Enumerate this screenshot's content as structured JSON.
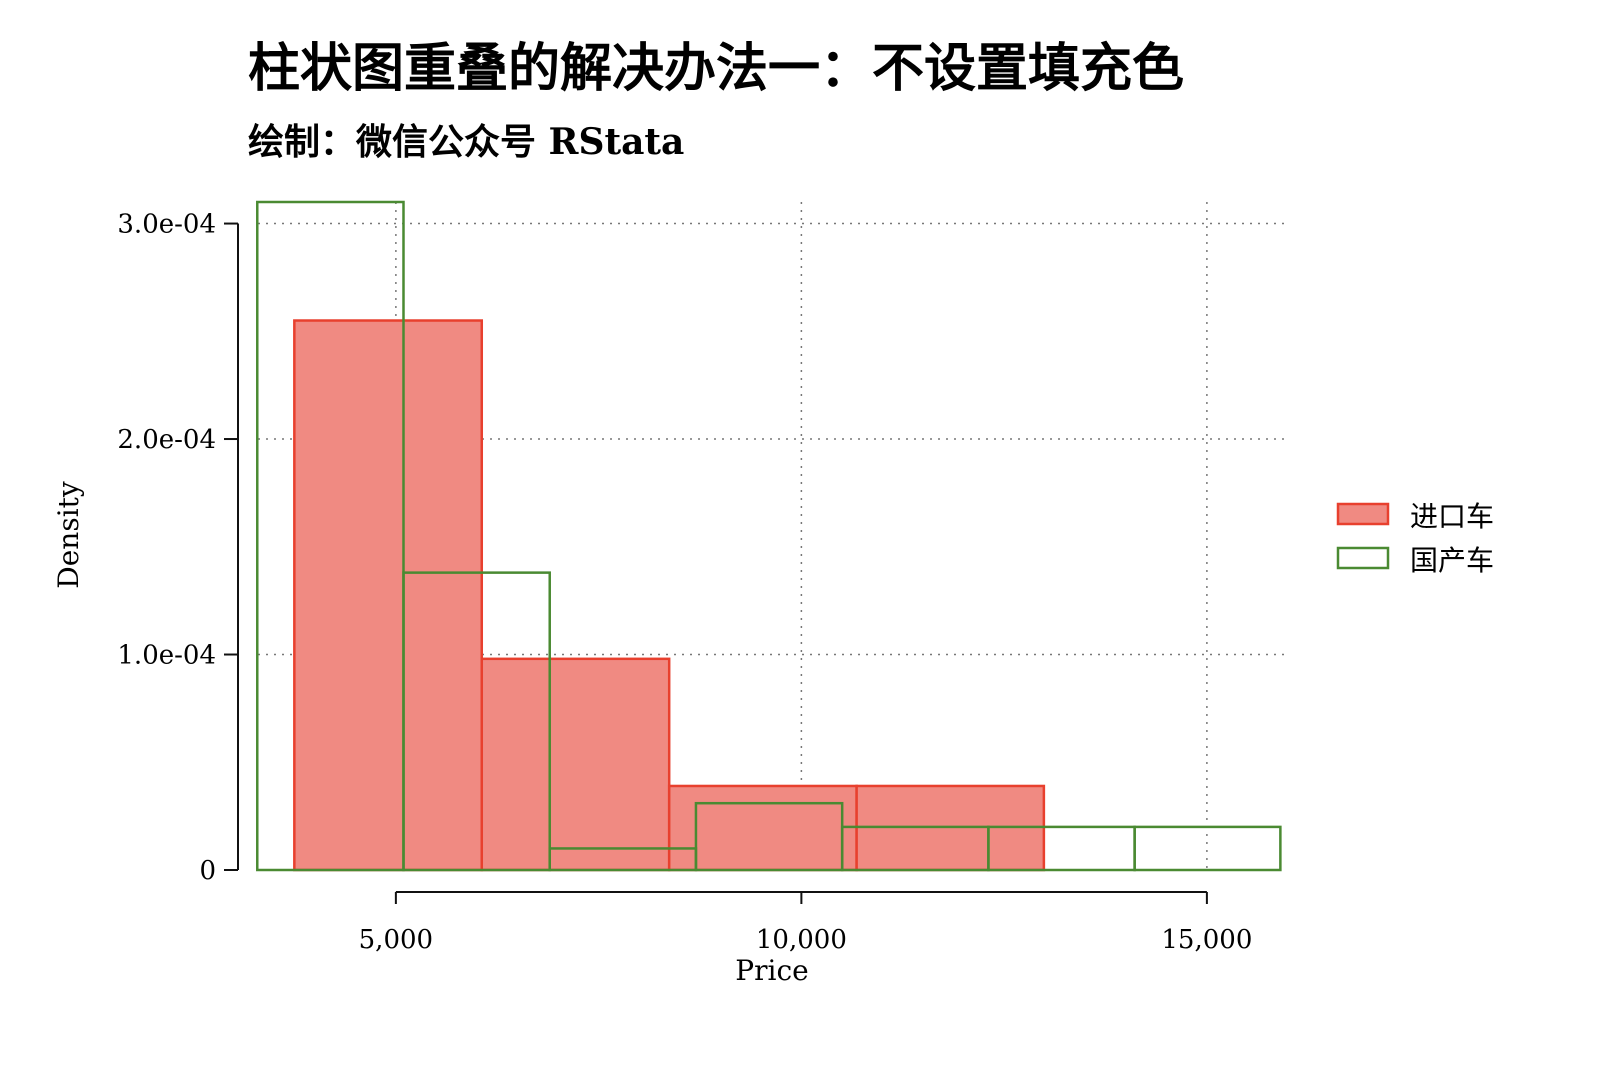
{
  "chart_data": {
    "type": "histogram",
    "title": "柱状图重叠的解决办法一：不设置填充色",
    "subtitle": "绘制：微信公众号 RStata",
    "xlabel": "Price",
    "ylabel": "Density",
    "xlim": [
      3300,
      16000
    ],
    "ylim": [
      0,
      0.00031
    ],
    "x_ticks": [
      {
        "value": 5000,
        "label": "5,000"
      },
      {
        "value": 10000,
        "label": "10,000"
      },
      {
        "value": 15000,
        "label": "15,000"
      }
    ],
    "y_ticks": [
      {
        "value": 0,
        "label": "0"
      },
      {
        "value": 0.0001,
        "label": "1.0e-04"
      },
      {
        "value": 0.0002,
        "label": "2.0e-04"
      },
      {
        "value": 0.0003,
        "label": "3.0e-04"
      }
    ],
    "grid": true,
    "legend_position": "right",
    "series": [
      {
        "name": "进口车",
        "fill": "#f08a82",
        "stroke": "#e8402e",
        "bins": [
          {
            "x0": 3748,
            "x1": 6059,
            "density": 0.000255
          },
          {
            "x0": 6059,
            "x1": 8370,
            "density": 9.8e-05
          },
          {
            "x0": 8370,
            "x1": 10681,
            "density": 3.9e-05
          },
          {
            "x0": 10681,
            "x1": 12990,
            "density": 3.9e-05
          }
        ]
      },
      {
        "name": "国产车",
        "fill": "none",
        "stroke": "#4a8a32",
        "bins": [
          {
            "x0": 3291,
            "x1": 5094,
            "density": 0.00031
          },
          {
            "x0": 5094,
            "x1": 6897,
            "density": 0.000138
          },
          {
            "x0": 6897,
            "x1": 8700,
            "density": 1e-05
          },
          {
            "x0": 8700,
            "x1": 10503,
            "density": 3.1e-05
          },
          {
            "x0": 10503,
            "x1": 12306,
            "density": 2e-05
          },
          {
            "x0": 12306,
            "x1": 14109,
            "density": 2e-05
          },
          {
            "x0": 14109,
            "x1": 15906,
            "density": 2e-05
          }
        ]
      }
    ]
  }
}
